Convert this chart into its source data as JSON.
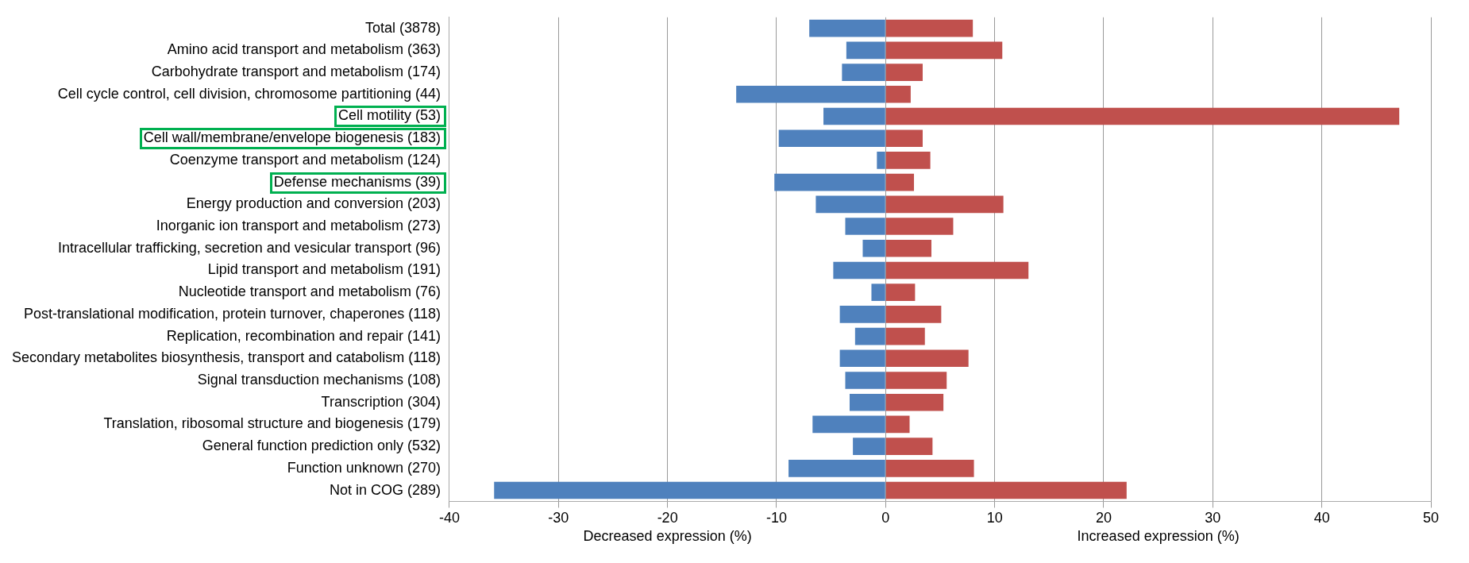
{
  "chart_data": {
    "type": "bar",
    "orientation": "horizontal",
    "stacked": true,
    "xlabel": "Decreased expression (%)",
    "annotations": [
      "Increased expression (%)"
    ],
    "categories": [
      "Total (3878)",
      "Amino acid transport and metabolism (363)",
      "Carbohydrate transport and metabolism (174)",
      "Cell cycle control, cell division, chromosome partitioning (44)",
      "Cell motility (53)",
      "Cell wall/membrane/envelope biogenesis (183)",
      "Coenzyme transport and metabolism (124)",
      "Defense mechanisms (39)",
      "Energy production and conversion (203)",
      "Inorganic ion transport and metabolism (273)",
      "Intracellular trafficking, secretion and vesicular transport (96)",
      "Lipid transport and metabolism (191)",
      "Nucleotide transport and metabolism (76)",
      "Post-translational modification, protein turnover, chaperones (118)",
      "Replication, recombination and repair (141)",
      "Secondary metabolites biosynthesis, transport and catabolism (118)",
      "Signal transduction mechanisms (108)",
      "Transcription (304)",
      "Translation, ribosomal structure and biogenesis (179)",
      "General function prediction only (532)",
      "Function unknown (270)",
      "Not in COG (289)"
    ],
    "series": [
      {
        "color": "#4f81bd",
        "values": [
          -7.0,
          -3.6,
          -4.0,
          -13.7,
          -5.7,
          -9.8,
          -0.8,
          -10.2,
          -6.4,
          -3.7,
          -2.1,
          -4.8,
          -1.3,
          -4.2,
          -2.8,
          -4.2,
          -3.7,
          -3.3,
          -6.7,
          -3.0,
          -8.9,
          -35.9
        ]
      },
      {
        "color": "#c0504d",
        "values": [
          8.0,
          10.7,
          3.4,
          2.3,
          47.1,
          3.4,
          4.1,
          2.6,
          10.8,
          6.2,
          4.2,
          13.1,
          2.7,
          5.1,
          3.6,
          7.6,
          5.6,
          5.3,
          2.2,
          4.3,
          8.1,
          22.1
        ]
      }
    ],
    "xlim": [
      -40,
      50
    ],
    "xticks": [
      -40,
      -30,
      -20,
      -10,
      0,
      10,
      20,
      30,
      40,
      50
    ],
    "grid": "x",
    "legend": false
  }
}
